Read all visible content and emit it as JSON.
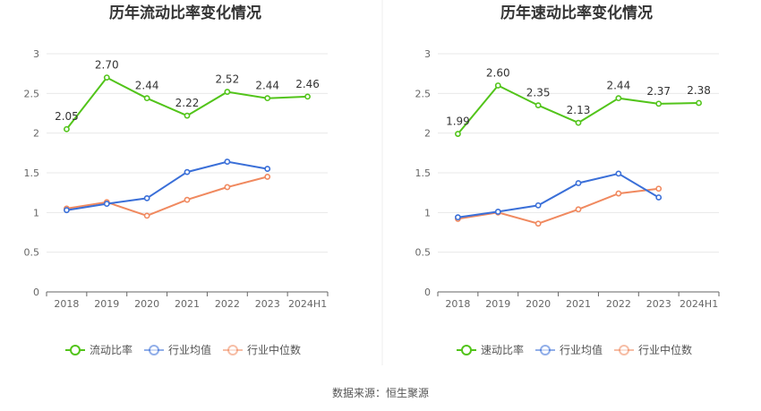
{
  "colors": {
    "primary": "#52c41a",
    "industry_avg": "#3a6fd8",
    "industry_median": "#f0895f",
    "grid": "#e8e8e8",
    "axis": "#666666"
  },
  "chart_data": [
    {
      "type": "line",
      "title": "历年流动比率变化情况",
      "categories": [
        "2018",
        "2019",
        "2020",
        "2021",
        "2022",
        "2023",
        "2024H1"
      ],
      "y_ticks": [
        "0",
        "0.5",
        "1",
        "1.5",
        "2",
        "2.5",
        "3"
      ],
      "ylim": [
        0,
        3
      ],
      "legend_position": "bottom",
      "series": [
        {
          "name": "流动比率",
          "color_key": "primary",
          "values": [
            2.05,
            2.7,
            2.44,
            2.22,
            2.52,
            2.44,
            2.46
          ],
          "labels": [
            "2.05",
            "2.70",
            "2.44",
            "2.22",
            "2.52",
            "2.44",
            "2.46"
          ]
        },
        {
          "name": "行业均值",
          "color_key": "industry_avg",
          "values": [
            1.03,
            1.11,
            1.18,
            1.51,
            1.64,
            1.55,
            null
          ]
        },
        {
          "name": "行业中位数",
          "color_key": "industry_median",
          "values": [
            1.05,
            1.13,
            0.96,
            1.16,
            1.32,
            1.45,
            null
          ]
        }
      ]
    },
    {
      "type": "line",
      "title": "历年速动比率变化情况",
      "categories": [
        "2018",
        "2019",
        "2020",
        "2021",
        "2022",
        "2023",
        "2024H1"
      ],
      "y_ticks": [
        "0",
        "0.5",
        "1",
        "1.5",
        "2",
        "2.5",
        "3"
      ],
      "ylim": [
        0,
        3
      ],
      "legend_position": "bottom",
      "series": [
        {
          "name": "速动比率",
          "color_key": "primary",
          "values": [
            1.99,
            2.6,
            2.35,
            2.13,
            2.44,
            2.37,
            2.38
          ],
          "labels": [
            "1.99",
            "2.60",
            "2.35",
            "2.13",
            "2.44",
            "2.37",
            "2.38"
          ]
        },
        {
          "name": "行业均值",
          "color_key": "industry_avg",
          "values": [
            0.94,
            1.01,
            1.09,
            1.37,
            1.49,
            1.19,
            null
          ]
        },
        {
          "name": "行业中位数",
          "color_key": "industry_median",
          "values": [
            0.92,
            1.0,
            0.86,
            1.04,
            1.24,
            1.3,
            null
          ]
        }
      ]
    }
  ],
  "footer": {
    "source_text": "数据来源：恒生聚源"
  }
}
